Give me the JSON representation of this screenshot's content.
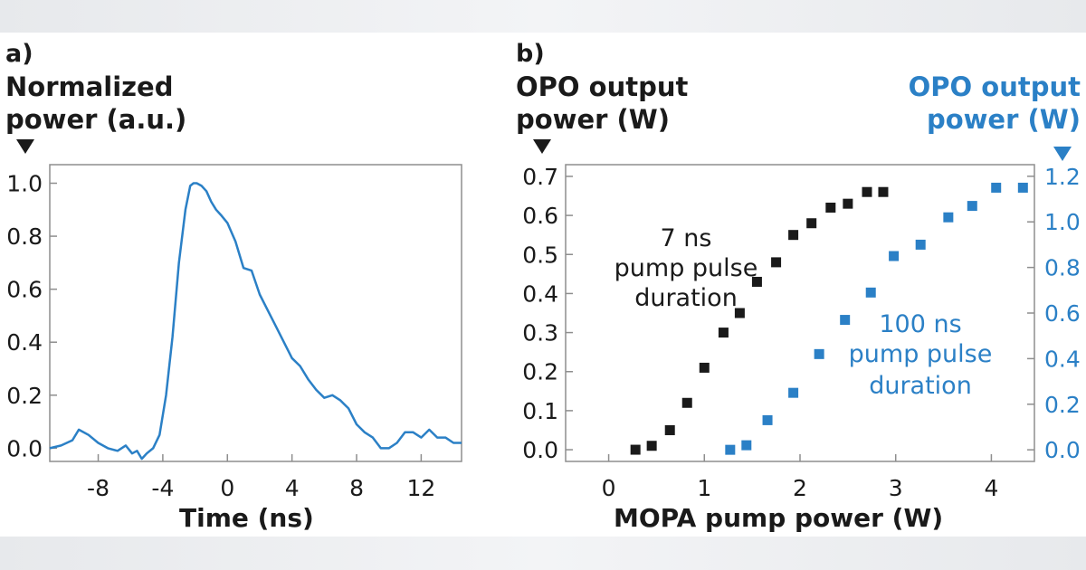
{
  "colors": {
    "black": "#1a1a1a",
    "blue": "#2b80c6",
    "frame": "#8e8e8e"
  },
  "chart_data": [
    {
      "panel": "a)",
      "type": "line",
      "ytitle": [
        "Normalized",
        "power (a.u.)"
      ],
      "xlabel": "Time (ns)",
      "xlim": [
        -11,
        14.5
      ],
      "ylim": [
        -0.05,
        1.07
      ],
      "xticks": [
        -8,
        -4,
        0,
        4,
        8,
        12
      ],
      "yticks": [
        0.0,
        0.2,
        0.4,
        0.6,
        0.8,
        1.0
      ],
      "ytick_labels": [
        "0.0",
        "0.2",
        "0.4",
        "0.6",
        "0.8",
        "1.0"
      ],
      "series": [
        {
          "name": "pulse",
          "color": "#2b80c6",
          "x": [
            -11,
            -10.3,
            -9.6,
            -9.2,
            -8.6,
            -8.0,
            -7.4,
            -6.8,
            -6.3,
            -5.9,
            -5.6,
            -5.3,
            -5.0,
            -4.6,
            -4.2,
            -3.8,
            -3.4,
            -3.0,
            -2.6,
            -2.3,
            -2.1,
            -1.9,
            -1.6,
            -1.3,
            -1.0,
            -0.7,
            -0.4,
            0.0,
            0.5,
            1.0,
            1.5,
            2.0,
            2.5,
            3.0,
            3.5,
            4.0,
            4.5,
            5.0,
            5.5,
            6.0,
            6.5,
            7.0,
            7.5,
            8.0,
            8.5,
            9.0,
            9.5,
            10.0,
            10.5,
            11.0,
            11.5,
            12.0,
            12.5,
            13.0,
            13.5,
            14.0,
            14.5
          ],
          "y": [
            0.0,
            0.01,
            0.03,
            0.07,
            0.05,
            0.02,
            0.0,
            -0.01,
            0.01,
            -0.02,
            -0.01,
            -0.04,
            -0.02,
            0.0,
            0.05,
            0.2,
            0.42,
            0.7,
            0.9,
            0.99,
            1.0,
            1.0,
            0.99,
            0.97,
            0.93,
            0.9,
            0.88,
            0.85,
            0.78,
            0.68,
            0.67,
            0.58,
            0.52,
            0.46,
            0.4,
            0.34,
            0.31,
            0.26,
            0.22,
            0.19,
            0.2,
            0.18,
            0.15,
            0.09,
            0.06,
            0.04,
            0.0,
            0.0,
            0.02,
            0.06,
            0.06,
            0.04,
            0.07,
            0.04,
            0.04,
            0.02,
            0.02
          ]
        }
      ]
    },
    {
      "panel": "b)",
      "type": "scatter",
      "ytitle": [
        "OPO output",
        "power (W)"
      ],
      "y2title": [
        "OPO output",
        "power (W)"
      ],
      "xlabel": "MOPA pump power (W)",
      "xlim": [
        -0.45,
        4.45
      ],
      "ylim": [
        -0.03,
        0.73
      ],
      "y2lim": [
        -0.051,
        1.251
      ],
      "xticks": [
        0,
        1,
        2,
        3,
        4
      ],
      "yticks": [
        0.0,
        0.1,
        0.2,
        0.3,
        0.4,
        0.5,
        0.6,
        0.7
      ],
      "ytick_labels": [
        "0.0",
        "0.1",
        "0.2",
        "0.3",
        "0.4",
        "0.5",
        "0.6",
        "0.7"
      ],
      "y2ticks": [
        0.0,
        0.2,
        0.4,
        0.6,
        0.8,
        1.0,
        1.2
      ],
      "y2tick_labels": [
        "0.0",
        "0.2",
        "0.4",
        "0.6",
        "0.8",
        "1.0",
        "1.2"
      ],
      "series": [
        {
          "name": "7 ns pump pulse duration",
          "label_lines": [
            "7 ns",
            "pump pulse",
            "duration"
          ],
          "color": "#1a1a1a",
          "axis": "left",
          "x": [
            0.28,
            0.45,
            0.64,
            0.82,
            1.0,
            1.2,
            1.37,
            1.55,
            1.75,
            1.93,
            2.12,
            2.32,
            2.5,
            2.7,
            2.87
          ],
          "y": [
            0.0,
            0.01,
            0.05,
            0.12,
            0.21,
            0.3,
            0.35,
            0.43,
            0.48,
            0.55,
            0.58,
            0.62,
            0.63,
            0.66,
            0.66
          ]
        },
        {
          "name": "100 ns pump pulse duration",
          "label_lines": [
            "100 ns",
            "pump pulse",
            "duration"
          ],
          "color": "#2b80c6",
          "axis": "right",
          "x": [
            1.27,
            1.44,
            1.66,
            1.93,
            2.2,
            2.47,
            2.74,
            2.98,
            3.26,
            3.55,
            3.8,
            4.05,
            4.33
          ],
          "y": [
            0.0,
            0.02,
            0.13,
            0.25,
            0.42,
            0.57,
            0.69,
            0.85,
            0.9,
            1.02,
            1.07,
            1.15,
            1.15
          ]
        }
      ]
    }
  ]
}
